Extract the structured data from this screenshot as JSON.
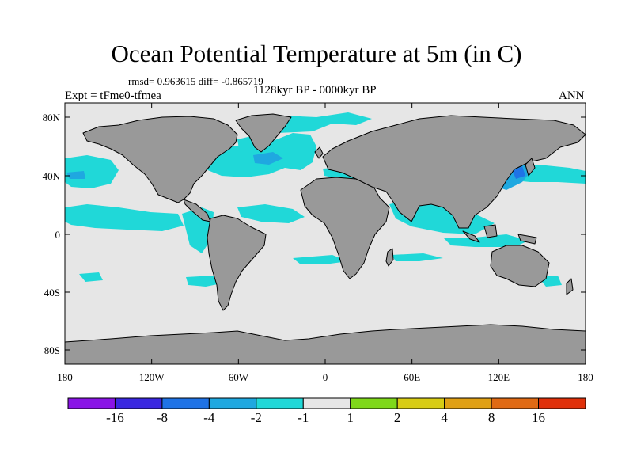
{
  "title": "Ocean Potential Temperature at 5m (in C)",
  "stats": "rmsd= 0.963615 diff= -0.865719",
  "subtitle": "1128kyr BP - 0000kyr BP",
  "experiment": "Expt = tFme0-tfmea",
  "season": "ANN",
  "lat_ticks": [
    "80N",
    "40N",
    "0",
    "40S",
    "80S"
  ],
  "lon_ticks": [
    "180",
    "120W",
    "60W",
    "0",
    "60E",
    "120E",
    "180"
  ],
  "colorbar": {
    "boundaries": [
      "-16",
      "-8",
      "-4",
      "-2",
      "-1",
      "1",
      "2",
      "4",
      "8",
      "16"
    ],
    "colors": [
      "#8a14e6",
      "#3a28e0",
      "#1f73e6",
      "#1fa8e0",
      "#20d8d8",
      "#e6e6e6",
      "#7fd81a",
      "#d8cc14",
      "#e0a014",
      "#e06a14",
      "#e0300a"
    ]
  },
  "colors": {
    "land": "#999999",
    "ocean_neutral": "#e6e6e6",
    "cooling_1_2": "#20d8d8",
    "cooling_2_4": "#1fa8e0",
    "cooling_4_8": "#1f73e6"
  }
}
